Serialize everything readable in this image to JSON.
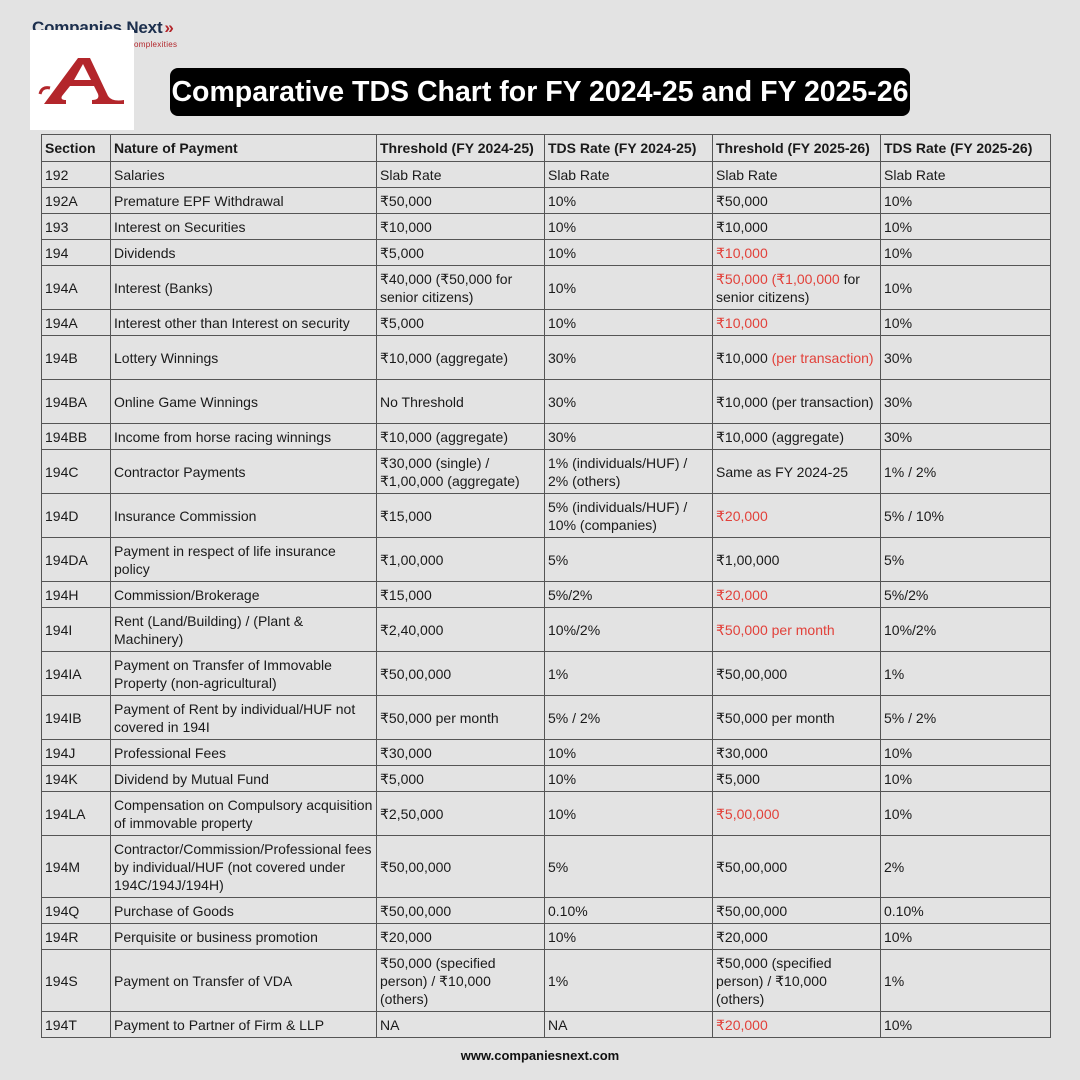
{
  "brand": {
    "name": "Companies Next",
    "chevron": "»",
    "tagline": "omplexities"
  },
  "logo": {
    "letter": "A",
    "color": "#b3262b"
  },
  "title": "Comparative TDS Chart for FY 2024-25 and FY 2025-26",
  "colors": {
    "highlight": "#e2413a",
    "title_bg": "#000000",
    "page_bg": "#e3e3e3"
  },
  "table": {
    "headers": [
      "Section",
      "Nature of Payment",
      "Threshold (FY 2024-25)",
      "TDS Rate (FY 2024-25)",
      "Threshold (FY 2025-26)",
      "TDS Rate (FY 2025-26)"
    ],
    "rows": [
      {
        "section": "192",
        "nature": "Salaries",
        "th1": "Slab Rate",
        "r1": "Slab Rate",
        "th2a": "Slab Rate",
        "th2b": "",
        "th2c": "",
        "r2": "Slab Rate"
      },
      {
        "section": "192A",
        "nature": "Premature EPF Withdrawal",
        "th1": "₹50,000",
        "r1": "10%",
        "th2a": "₹50,000",
        "th2b": "",
        "th2c": "",
        "r2": "10%"
      },
      {
        "section": "193",
        "nature": "Interest on Securities",
        "th1": "₹10,000",
        "r1": "10%",
        "th2a": "₹10,000",
        "th2b": "",
        "th2c": "",
        "r2": "10%"
      },
      {
        "section": "194",
        "nature": "Dividends",
        "th1": "₹5,000",
        "r1": "10%",
        "th2a": "",
        "th2b": "₹10,000",
        "th2c": "",
        "r2": "10%"
      },
      {
        "section": "194A",
        "nature": "Interest (Banks)",
        "th1": "₹40,000 (₹50,000 for senior citizens)",
        "r1": "10%",
        "th2a": "",
        "th2b": "₹50,000 (₹1,00,000",
        "th2c": " for senior citizens)",
        "r2": "10%"
      },
      {
        "section": "194A",
        "nature": "Interest other than Interest on security",
        "th1": "₹5,000",
        "r1": "10%",
        "th2a": "",
        "th2b": "₹10,000",
        "th2c": "",
        "r2": "10%"
      },
      {
        "section": "194B",
        "nature": "Lottery Winnings",
        "th1": "₹10,000 (aggregate)",
        "r1": "30%",
        "th2a": "₹10,000 ",
        "th2b": "(per transaction)",
        "th2c": "",
        "r2": "30%"
      },
      {
        "section": "194BA",
        "nature": "Online Game Winnings",
        "th1": "No Threshold",
        "r1": "30%",
        "th2a": "₹10,000 (per transaction)",
        "th2b": "",
        "th2c": "",
        "r2": "30%"
      },
      {
        "section": "194BB",
        "nature": "Income from horse racing winnings",
        "th1": "₹10,000 (aggregate)",
        "r1": "30%",
        "th2a": "₹10,000 (aggregate)",
        "th2b": "",
        "th2c": "",
        "r2": "30%"
      },
      {
        "section": "194C",
        "nature": "Contractor Payments",
        "th1": "₹30,000 (single) / ₹1,00,000 (aggregate)",
        "r1": "1% (individuals/HUF) / 2% (others)",
        "th2a": "Same as FY 2024-25",
        "th2b": "",
        "th2c": "",
        "r2": "1% / 2%"
      },
      {
        "section": "194D",
        "nature": "Insurance Commission",
        "th1": "₹15,000",
        "r1": "5% (individuals/HUF) / 10% (companies)",
        "th2a": "",
        "th2b": "₹20,000",
        "th2c": "",
        "r2": "5% / 10%"
      },
      {
        "section": "194DA",
        "nature": "Payment in respect of life insurance policy",
        "th1": "₹1,00,000",
        "r1": "5%",
        "th2a": "₹1,00,000",
        "th2b": "",
        "th2c": "",
        "r2": "5%"
      },
      {
        "section": "194H",
        "nature": "Commission/Brokerage",
        "th1": "₹15,000",
        "r1": "5%/2%",
        "th2a": "",
        "th2b": "₹20,000",
        "th2c": "",
        "r2": "5%/2%"
      },
      {
        "section": "194I",
        "nature": "Rent (Land/Building) / (Plant & Machinery)",
        "th1": "₹2,40,000",
        "r1": "10%/2%",
        "th2a": "",
        "th2b": "₹50,000 per month",
        "th2c": "",
        "r2": "10%/2%"
      },
      {
        "section": "194IA",
        "nature": "Payment on Transfer of Immovable Property (non-agricultural)",
        "th1": "₹50,00,000",
        "r1": "1%",
        "th2a": "₹50,00,000",
        "th2b": "",
        "th2c": "",
        "r2": "1%"
      },
      {
        "section": "194IB",
        "nature": "Payment of Rent by individual/HUF not covered in 194I",
        "th1": "₹50,000 per month",
        "r1": "5% / 2%",
        "th2a": "₹50,000 per month",
        "th2b": "",
        "th2c": "",
        "r2": "5% / 2%"
      },
      {
        "section": "194J",
        "nature": "Professional Fees",
        "th1": "₹30,000",
        "r1": "10%",
        "th2a": "₹30,000",
        "th2b": "",
        "th2c": "",
        "r2": "10%"
      },
      {
        "section": "194K",
        "nature": "Dividend by Mutual Fund",
        "th1": "₹5,000",
        "r1": "10%",
        "th2a": "₹5,000",
        "th2b": "",
        "th2c": "",
        "r2": "10%"
      },
      {
        "section": "194LA",
        "nature": "Compensation on Compulsory acquisition of immovable property",
        "th1": "₹2,50,000",
        "r1": "10%",
        "th2a": "",
        "th2b": "₹5,00,000",
        "th2c": "",
        "r2": "10%"
      },
      {
        "section": "194M",
        "nature": "Contractor/Commission/Professional fees by individual/HUF (not covered under 194C/194J/194H)",
        "th1": "₹50,00,000",
        "r1": "5%",
        "th2a": "₹50,00,000",
        "th2b": "",
        "th2c": "",
        "r2": "2%"
      },
      {
        "section": "194Q",
        "nature": "Purchase of Goods",
        "th1": "₹50,00,000",
        "r1": "0.10%",
        "th2a": "₹50,00,000",
        "th2b": "",
        "th2c": "",
        "r2": "0.10%"
      },
      {
        "section": "194R",
        "nature": "Perquisite or business promotion",
        "th1": "₹20,000",
        "r1": "10%",
        "th2a": "₹20,000",
        "th2b": "",
        "th2c": "",
        "r2": "10%"
      },
      {
        "section": "194S",
        "nature": "Payment on Transfer of VDA",
        "th1": "₹50,000 (specified person) / ₹10,000 (others)",
        "r1": "1%",
        "th2a": "₹50,000 (specified person) / ₹10,000 (others)",
        "th2b": "",
        "th2c": "",
        "r2": "1%"
      },
      {
        "section": "194T",
        "nature": "Payment to Partner of Firm & LLP",
        "th1": "NA",
        "r1": "NA",
        "th2a": "",
        "th2b": "₹20,000",
        "th2c": "",
        "r2": "10%"
      }
    ]
  },
  "footer": "www.companiesnext.com"
}
